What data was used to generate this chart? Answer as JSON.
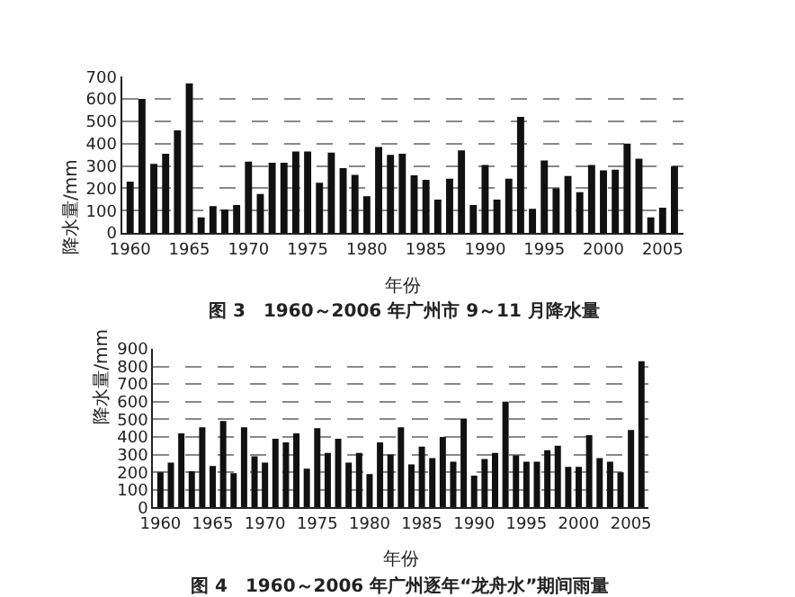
{
  "chart_data": [
    {
      "type": "bar",
      "title": "图 3　1960～2006 年广州市 9～11 月降水量",
      "xlabel": "年份",
      "ylabel": "降水量/mm",
      "x": [
        1960,
        1961,
        1962,
        1963,
        1964,
        1965,
        1966,
        1967,
        1968,
        1969,
        1970,
        1971,
        1972,
        1973,
        1974,
        1975,
        1976,
        1977,
        1978,
        1979,
        1980,
        1981,
        1982,
        1983,
        1984,
        1985,
        1986,
        1987,
        1988,
        1989,
        1990,
        1991,
        1992,
        1993,
        1994,
        1995,
        1996,
        1997,
        1998,
        1999,
        2000,
        2001,
        2002,
        2003,
        2004,
        2005,
        2006
      ],
      "values": [
        230,
        600,
        310,
        355,
        460,
        670,
        70,
        120,
        105,
        125,
        320,
        175,
        315,
        315,
        365,
        365,
        225,
        360,
        290,
        260,
        165,
        385,
        350,
        355,
        258,
        238,
        150,
        243,
        370,
        125,
        305,
        150,
        243,
        520,
        108,
        325,
        200,
        255,
        183,
        305,
        280,
        283,
        400,
        333,
        70,
        113,
        300
      ],
      "color": "#111111",
      "xlim": [
        1959.3,
        2006.8
      ],
      "xticks": [
        1960,
        1965,
        1970,
        1975,
        1980,
        1985,
        1990,
        1995,
        2000,
        2005
      ],
      "ylim": [
        0,
        700
      ],
      "yticks": [
        0,
        100,
        200,
        300,
        400,
        500,
        600,
        700
      ],
      "grid": "y"
    },
    {
      "type": "bar",
      "title": "图 4　1960～2006 年广州逐年“龙舟水”期间雨量",
      "xlabel": "年份",
      "ylabel": "降水量/mm",
      "x": [
        1960,
        1961,
        1962,
        1963,
        1964,
        1965,
        1966,
        1967,
        1968,
        1969,
        1970,
        1971,
        1972,
        1973,
        1974,
        1975,
        1976,
        1977,
        1978,
        1979,
        1980,
        1981,
        1982,
        1983,
        1984,
        1985,
        1986,
        1987,
        1988,
        1989,
        1990,
        1991,
        1992,
        1993,
        1994,
        1995,
        1996,
        1997,
        1998,
        1999,
        2000,
        2001,
        2002,
        2003,
        2004,
        2005,
        2006
      ],
      "values": [
        200,
        255,
        420,
        205,
        455,
        235,
        490,
        195,
        455,
        290,
        255,
        390,
        370,
        420,
        220,
        450,
        310,
        390,
        255,
        310,
        190,
        370,
        300,
        455,
        245,
        345,
        280,
        400,
        260,
        505,
        180,
        275,
        310,
        600,
        295,
        260,
        260,
        325,
        350,
        230,
        230,
        410,
        280,
        260,
        200,
        440,
        830
      ],
      "color": "#111111",
      "xlim": [
        1959.3,
        2006.7
      ],
      "xticks": [
        1960,
        1965,
        1970,
        1975,
        1980,
        1985,
        1990,
        1995,
        2000,
        2005
      ],
      "ylim": [
        0,
        900
      ],
      "yticks": [
        0,
        100,
        200,
        300,
        400,
        500,
        600,
        700,
        800,
        900
      ],
      "grid": "y"
    }
  ]
}
